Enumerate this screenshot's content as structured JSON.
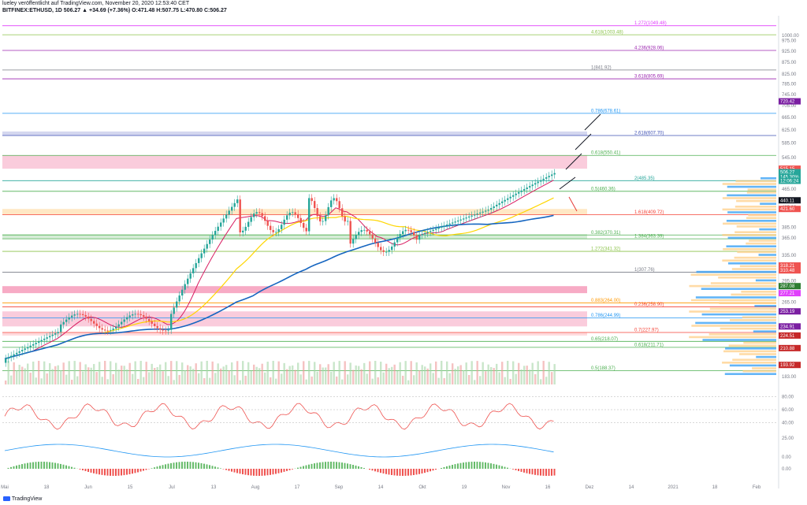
{
  "header": {
    "line1": "lueley veröffentlicht auf TradingView.com, November 20, 2020 12:53:40 CET",
    "line2": "BITFINEX:ETHUSD, 1D  506.27  ▲ +34.69 (+7.36%)  O:471.48  H:507.75  L:470.80  C:506.27"
  },
  "footer": {
    "brand": "TradingView"
  },
  "colors": {
    "up": "#26a69a",
    "down": "#ef5350",
    "sma_red": "#d81b60",
    "sma_yellow": "#ffd600",
    "sma_blue": "#1565c0",
    "bb": "#26a69a"
  },
  "chart_data": {
    "type": "candlestick",
    "symbol": "BITFINEX:ETHUSD",
    "interval": "1D",
    "price_scale": "log",
    "price_ticks": [
      1000,
      975,
      925,
      875,
      825,
      785,
      745,
      705,
      665,
      625,
      585,
      545,
      505,
      465,
      425,
      385,
      365,
      335,
      295,
      265,
      225,
      183
    ],
    "time_labels": [
      "Mai",
      "18",
      "Jun",
      "15",
      "Jul",
      "13",
      "Aug",
      "17",
      "Sep",
      "14",
      "Okt",
      "19",
      "Nov",
      "16",
      "Dez",
      "14",
      "2021",
      "18",
      "Feb"
    ],
    "fib_levels": [
      {
        "label": "1.272(1049.48)",
        "color": "#e040fb"
      },
      {
        "label": "4.618(1003.48)",
        "color": "#8bc34a"
      },
      {
        "label": "4.236(928.06)",
        "color": "#9c27b0"
      },
      {
        "label": "1(841.92)",
        "color": "#787b86"
      },
      {
        "label": "3.618(805.69)",
        "color": "#9c27b0"
      },
      {
        "label": "0.786(678.61)",
        "color": "#2196f3"
      },
      {
        "label": "2.618(607.70)",
        "color": "#3f51b5"
      },
      {
        "label": "0.618(550.41)",
        "color": "#4caf50"
      },
      {
        "label": "2(485.35)",
        "color": "#26a69a"
      },
      {
        "label": "0.5(460.36)",
        "color": "#4caf50"
      },
      {
        "label": "1.618(409.72)",
        "color": "#f44336"
      },
      {
        "label": "0.382(370.31)",
        "color": "#4caf50"
      },
      {
        "label": "1.384(363.39)",
        "color": "#4caf50"
      },
      {
        "label": "1.272(341.32)",
        "color": "#8bc34a"
      },
      {
        "label": "1(307.76)",
        "color": "#787b86"
      },
      {
        "label": "0.883(264.00)",
        "color": "#ff9800"
      },
      {
        "label": "0.236(258.90)",
        "color": "#f44336"
      },
      {
        "label": "0.786(244.99)",
        "color": "#2196f3"
      },
      {
        "label": "0.7(227.97)",
        "color": "#f44336"
      },
      {
        "label": "0.65(218.07)",
        "color": "#4caf50"
      },
      {
        "label": "0.618(211.71)",
        "color": "#4caf50"
      },
      {
        "label": "0.5(188.37)",
        "color": "#4caf50"
      }
    ],
    "price_tags": [
      {
        "label": "515.15",
        "color": "#ef5350"
      },
      {
        "label": "506.27",
        "color": "#26a69a"
      },
      {
        "label": "145.30%",
        "color": "#26a69a"
      },
      {
        "label": "12:06:24",
        "color": "#26a69a"
      },
      {
        "label": "720.42",
        "color": "#7b1fa2"
      },
      {
        "label": "440.11",
        "color": "#131722"
      },
      {
        "label": "421.60",
        "color": "#ef5350"
      },
      {
        "label": "318.21",
        "color": "#ef5350"
      },
      {
        "label": "310.48",
        "color": "#ef5350"
      },
      {
        "label": "287.08",
        "color": "#2e7d32"
      },
      {
        "label": "277.21",
        "color": "#e040fb"
      },
      {
        "label": "253.19",
        "color": "#7b1fa2"
      },
      {
        "label": "234.91",
        "color": "#7b1fa2"
      },
      {
        "label": "224.51",
        "color": "#c62828"
      },
      {
        "label": "210.88",
        "color": "#c62828"
      },
      {
        "label": "193.92",
        "color": "#c62828"
      }
    ],
    "rsi_ticks": [
      80.0,
      60.0,
      40.0
    ],
    "macd_ticks": [
      25.0,
      0.0
    ],
    "ao_ticks": [
      0.0
    ]
  }
}
